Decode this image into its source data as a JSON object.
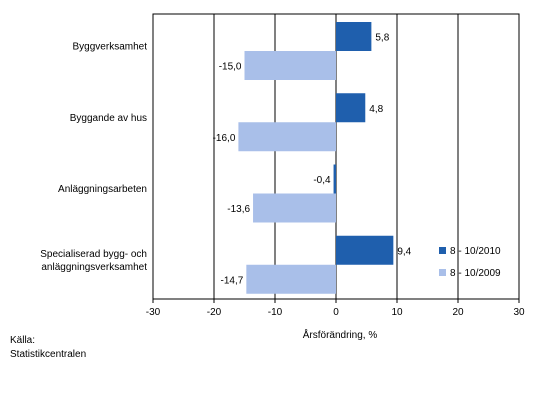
{
  "chart_data": {
    "type": "bar",
    "orientation": "horizontal",
    "categories": [
      "Byggverksamhet",
      "Byggande av hus",
      "Anläggningsarbeten",
      "Specialiserad bygg- och anläggningsverksamhet"
    ],
    "category_label_lines": [
      [
        "Byggverksamhet"
      ],
      [
        "Byggande av hus"
      ],
      [
        "Anläggningsarbeten"
      ],
      [
        "Specialiserad bygg- och",
        "anläggningsverksamhet"
      ]
    ],
    "series": [
      {
        "name": "8 - 10/2010",
        "values": [
          5.8,
          4.8,
          -0.4,
          9.4
        ],
        "labels": [
          "5,8",
          "4,8",
          "-0,4",
          "9,4"
        ],
        "color": "#1f5fad"
      },
      {
        "name": "8 - 10/2009",
        "values": [
          -15.0,
          -16.0,
          -13.6,
          -14.7
        ],
        "labels": [
          "-15,0",
          "-16,0",
          "-13,6",
          "-14,7"
        ],
        "color": "#a9bfe9"
      }
    ],
    "xlabel": "Årsförändring, %",
    "xlim": [
      -30,
      30
    ],
    "xticks": [
      -30,
      -20,
      -10,
      0,
      10,
      20,
      30
    ],
    "grid": "vertical",
    "legend": "right"
  },
  "source": {
    "label": "Källa:",
    "name": "Statistikcentralen"
  }
}
